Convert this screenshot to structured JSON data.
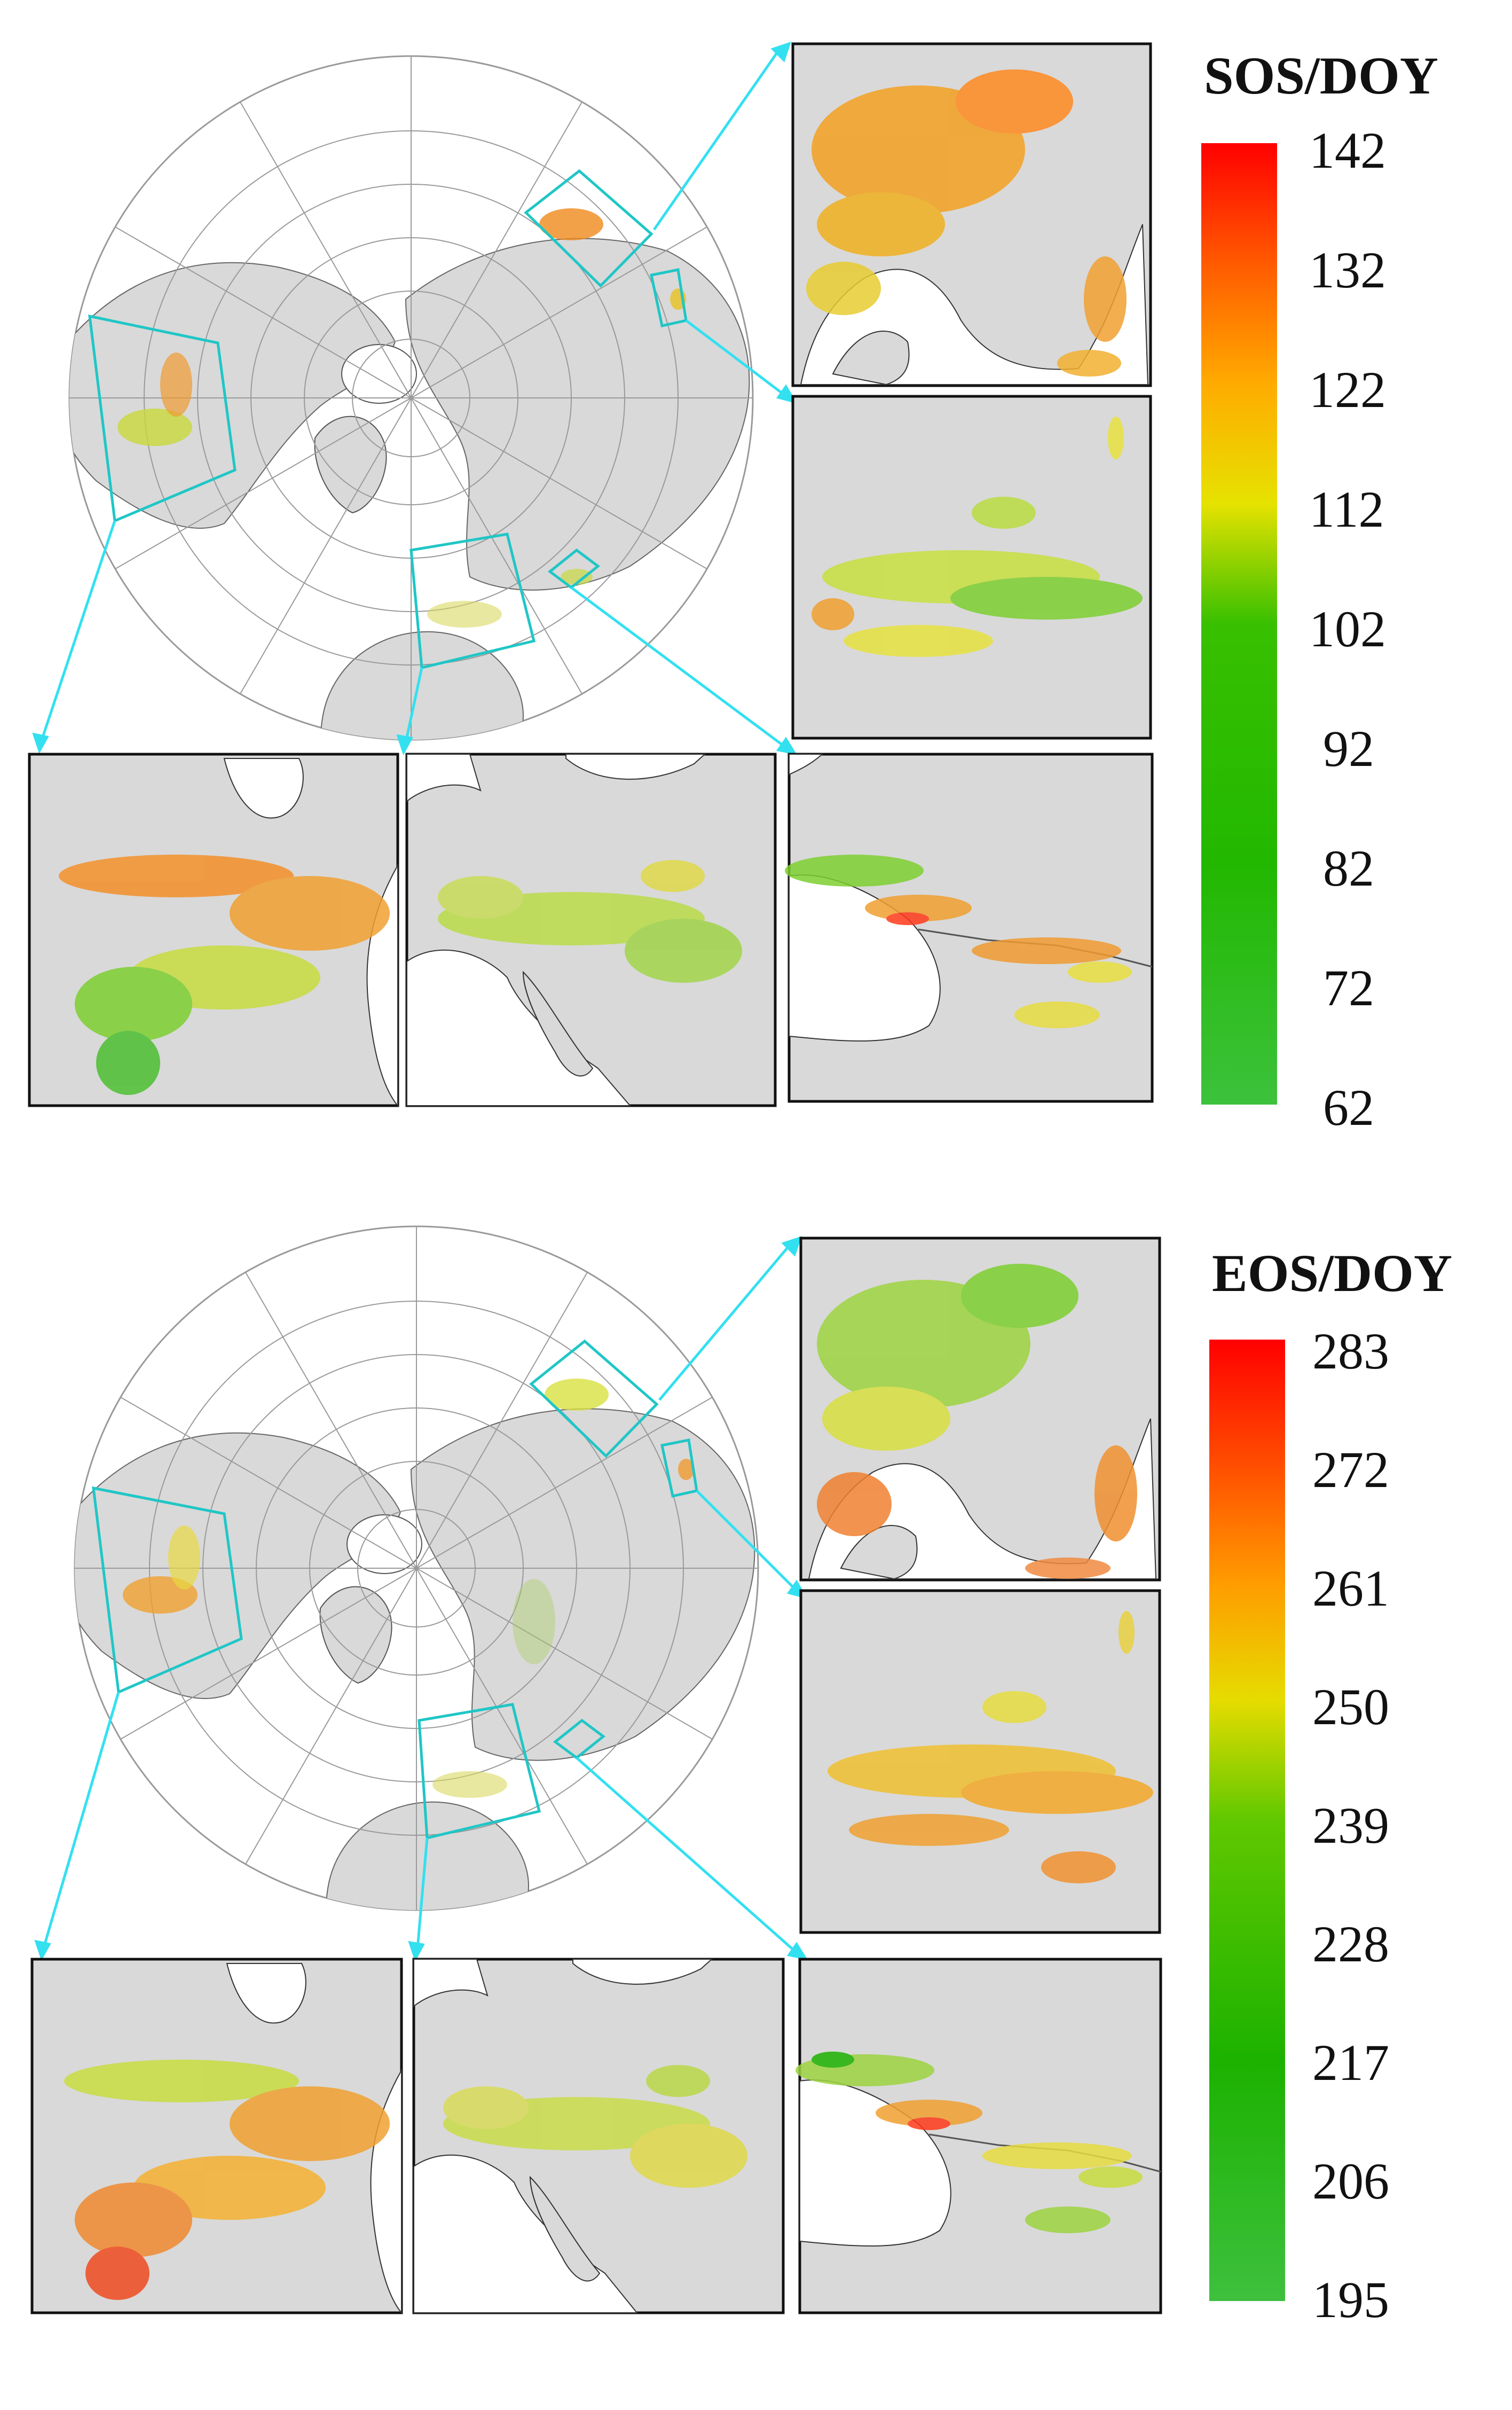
{
  "panels": [
    {
      "id": "sos",
      "legend": {
        "title": "SOS/DOY",
        "ticks": [
          "142",
          "132",
          "122",
          "112",
          "102",
          "92",
          "82",
          "72",
          "62"
        ],
        "colors": [
          "#ff0000",
          "#ff6a00",
          "#ffb400",
          "#e8e400",
          "#8fd400",
          "#22c000",
          "#17b800",
          "#22b81c",
          "#39bf39"
        ]
      },
      "insets": [
        "northeast-asia",
        "central-asia",
        "north-america",
        "europe",
        "caucasus"
      ]
    },
    {
      "id": "eos",
      "legend": {
        "title": "EOS/DOY",
        "ticks": [
          "283",
          "272",
          "261",
          "250",
          "239",
          "228",
          "217",
          "206",
          "195"
        ],
        "colors": [
          "#ff0000",
          "#ff4a00",
          "#ff9a00",
          "#e6dc00",
          "#68c800",
          "#1fb800",
          "#17b000",
          "#21b41a",
          "#3ec03e"
        ]
      },
      "insets": [
        "northeast-asia",
        "central-asia",
        "north-america",
        "europe",
        "caucasus"
      ]
    }
  ],
  "colors": {
    "land": "#d9d9d9",
    "ocean": "#ffffff",
    "graticule": "#9a9a9a",
    "highlight_box": "#20c6c6",
    "arrow": "#33e0f0",
    "frame": "#111111"
  }
}
